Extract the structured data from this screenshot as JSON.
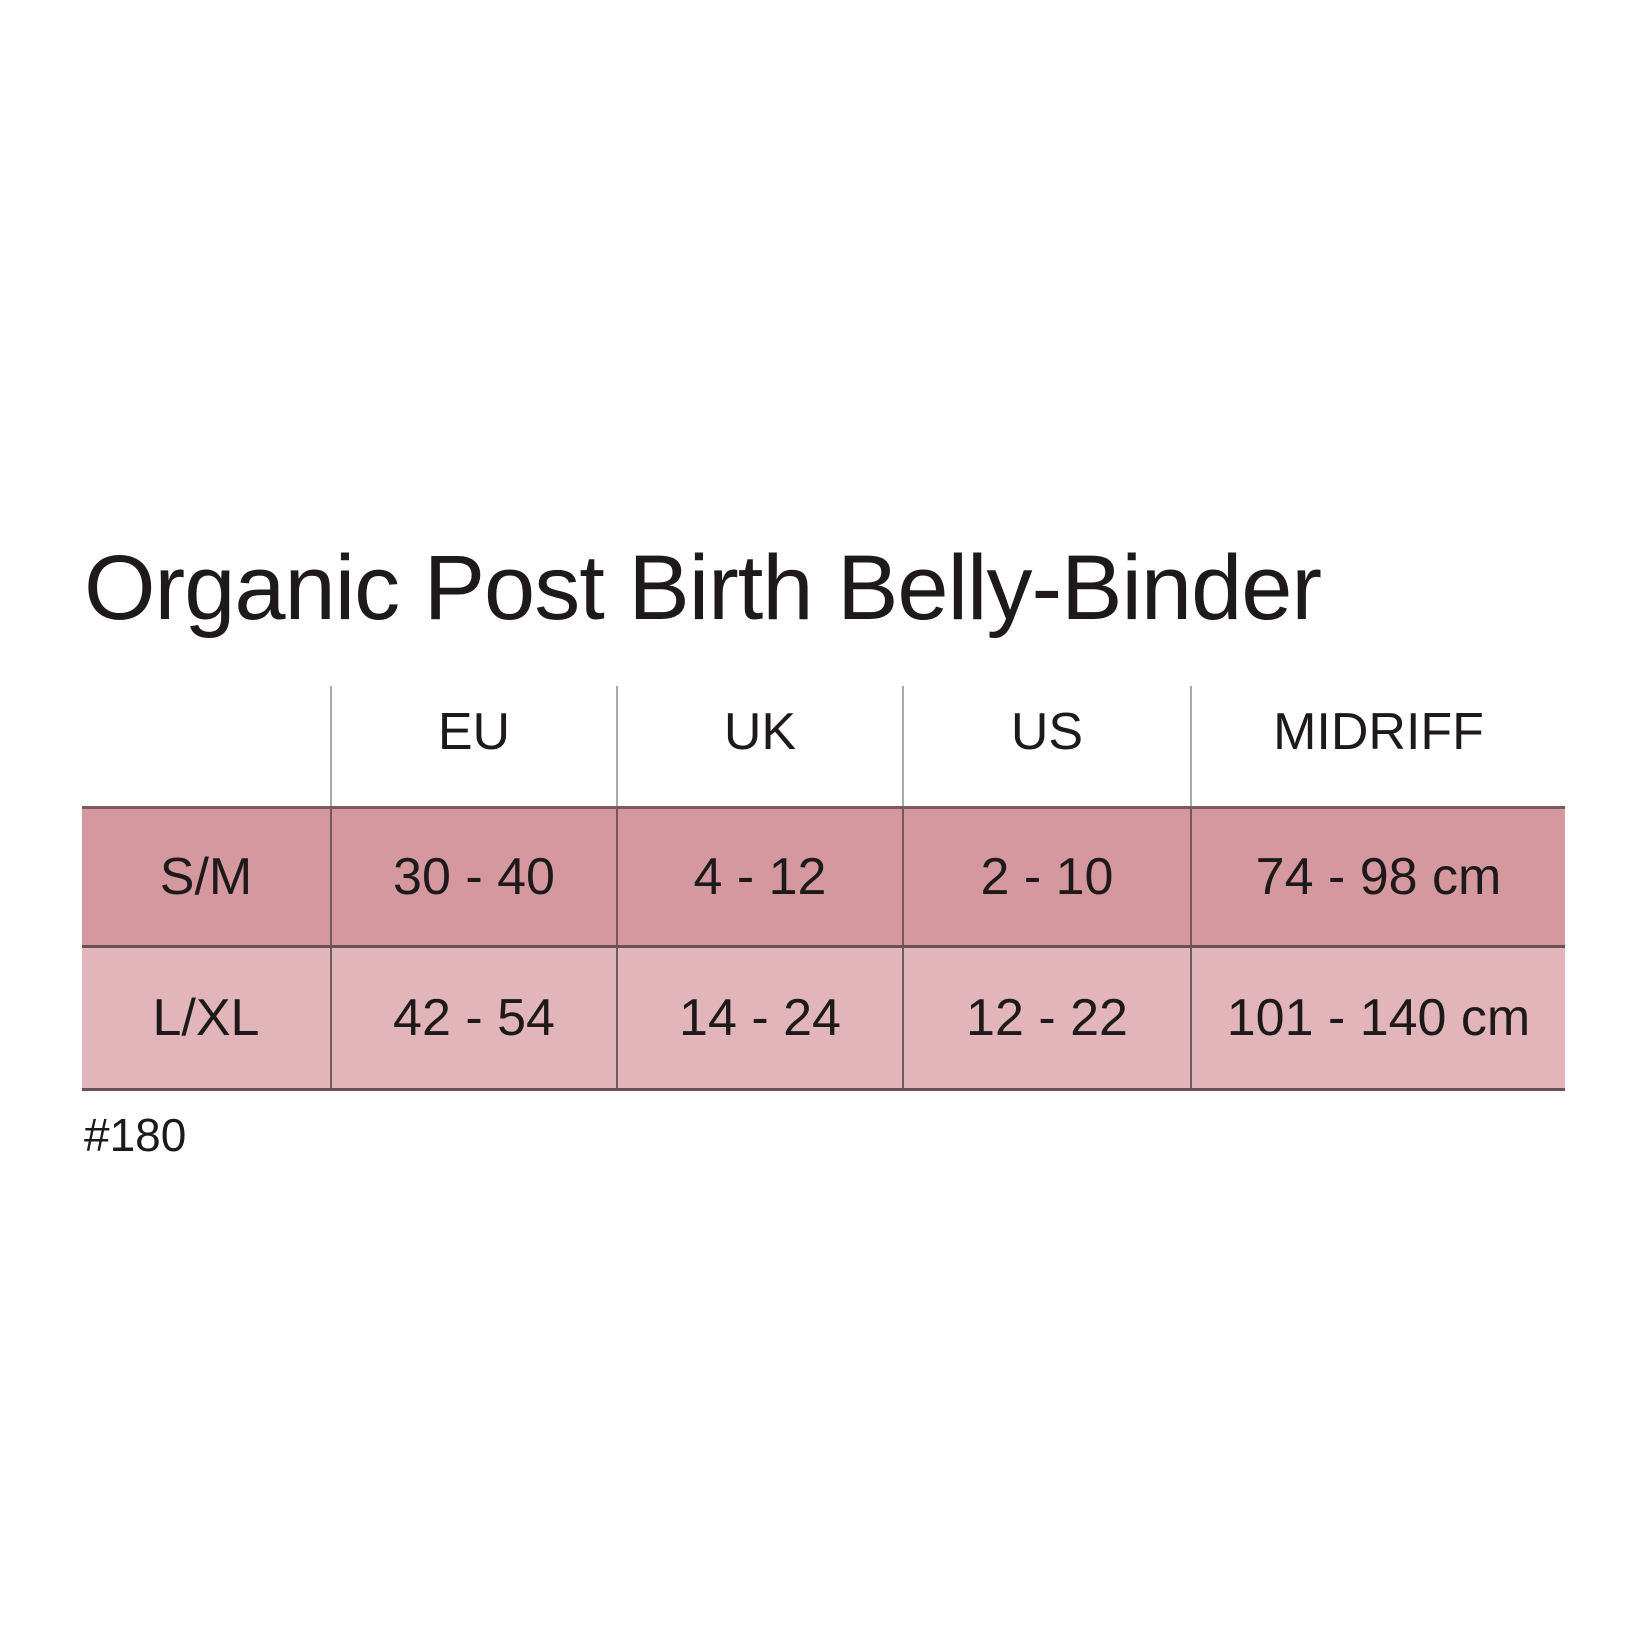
{
  "title": "Organic Post Birth Belly-Binder",
  "table": {
    "headers": [
      "",
      "EU",
      "UK",
      "US",
      "MIDRIFF"
    ],
    "rows": [
      [
        "S/M",
        "30 - 40",
        "4 - 12",
        "2 - 10",
        "74 - 98 cm"
      ],
      [
        "L/XL",
        "42 - 54",
        "14 - 24",
        "12 - 22",
        "101 - 140 cm"
      ]
    ],
    "row_colors": [
      "#d6989f",
      "#e2b5ba"
    ]
  },
  "note": "#180"
}
